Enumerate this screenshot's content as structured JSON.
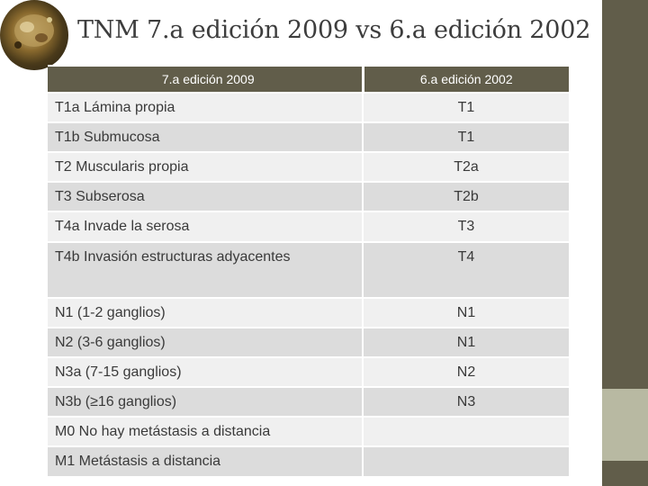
{
  "title": "TNM 7.a edición 2009 vs 6.a edición 2002",
  "colors": {
    "sidebar": "#615d4a",
    "sidebar_accent": "#b8b9a2",
    "header_bg": "#615d4a",
    "row_light": "#f0f0f0",
    "row_dark": "#dcdcdc"
  },
  "table": {
    "headers": [
      "7.a edición 2009",
      "6.a edición 2002"
    ],
    "rows": [
      [
        "T1a Lámina propia",
        "T1"
      ],
      [
        "T1b Submucosa",
        "T1"
      ],
      [
        "T2 Muscularis propia",
        "T2a"
      ],
      [
        "T3 Subserosa",
        "T2b"
      ],
      [
        "T4a Invade la serosa",
        "T3"
      ],
      [
        "T4b Invasión estructuras adyacentes",
        "T4"
      ],
      [
        "N1 (1-2 ganglios)",
        "N1"
      ],
      [
        "N2 (3-6 ganglios)",
        "N1"
      ],
      [
        "N3a (7-15 ganglios)",
        "N2"
      ],
      [
        "N3b (≥16 ganglios)",
        "N3"
      ],
      [
        "M0 No hay metástasis a distancia",
        ""
      ],
      [
        "M1 Metástasis a distancia",
        ""
      ]
    ]
  }
}
